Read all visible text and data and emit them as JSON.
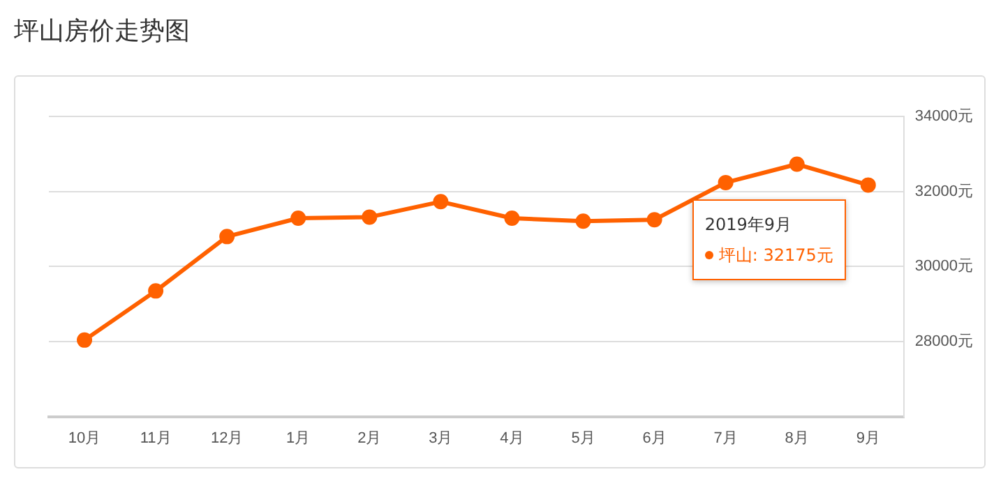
{
  "chart_data": {
    "type": "line",
    "title": "坪山房价走势图",
    "categories": [
      "10月",
      "11月",
      "12月",
      "1月",
      "2月",
      "3月",
      "4月",
      "5月",
      "6月",
      "7月",
      "8月",
      "9月"
    ],
    "series": [
      {
        "color": "#ff6100",
        "values": [
          28040,
          29350,
          30800,
          31290,
          31320,
          31730,
          31290,
          31210,
          31250,
          32240,
          32730,
          32175
        ]
      }
    ],
    "ylim": [
      26000,
      34000
    ],
    "yticks": [
      {
        "value": 26000,
        "label": null
      },
      {
        "value": 28000,
        "label": "28000元"
      },
      {
        "value": 30000,
        "label": "30000元"
      },
      {
        "value": 32000,
        "label": "32000元"
      },
      {
        "value": 34000,
        "label": "34000元"
      }
    ],
    "annotations": [
      "2019年9月",
      "坪山: 32175元"
    ],
    "grid": "y",
    "legend": false,
    "marker": "circle",
    "line_style": "solid"
  }
}
